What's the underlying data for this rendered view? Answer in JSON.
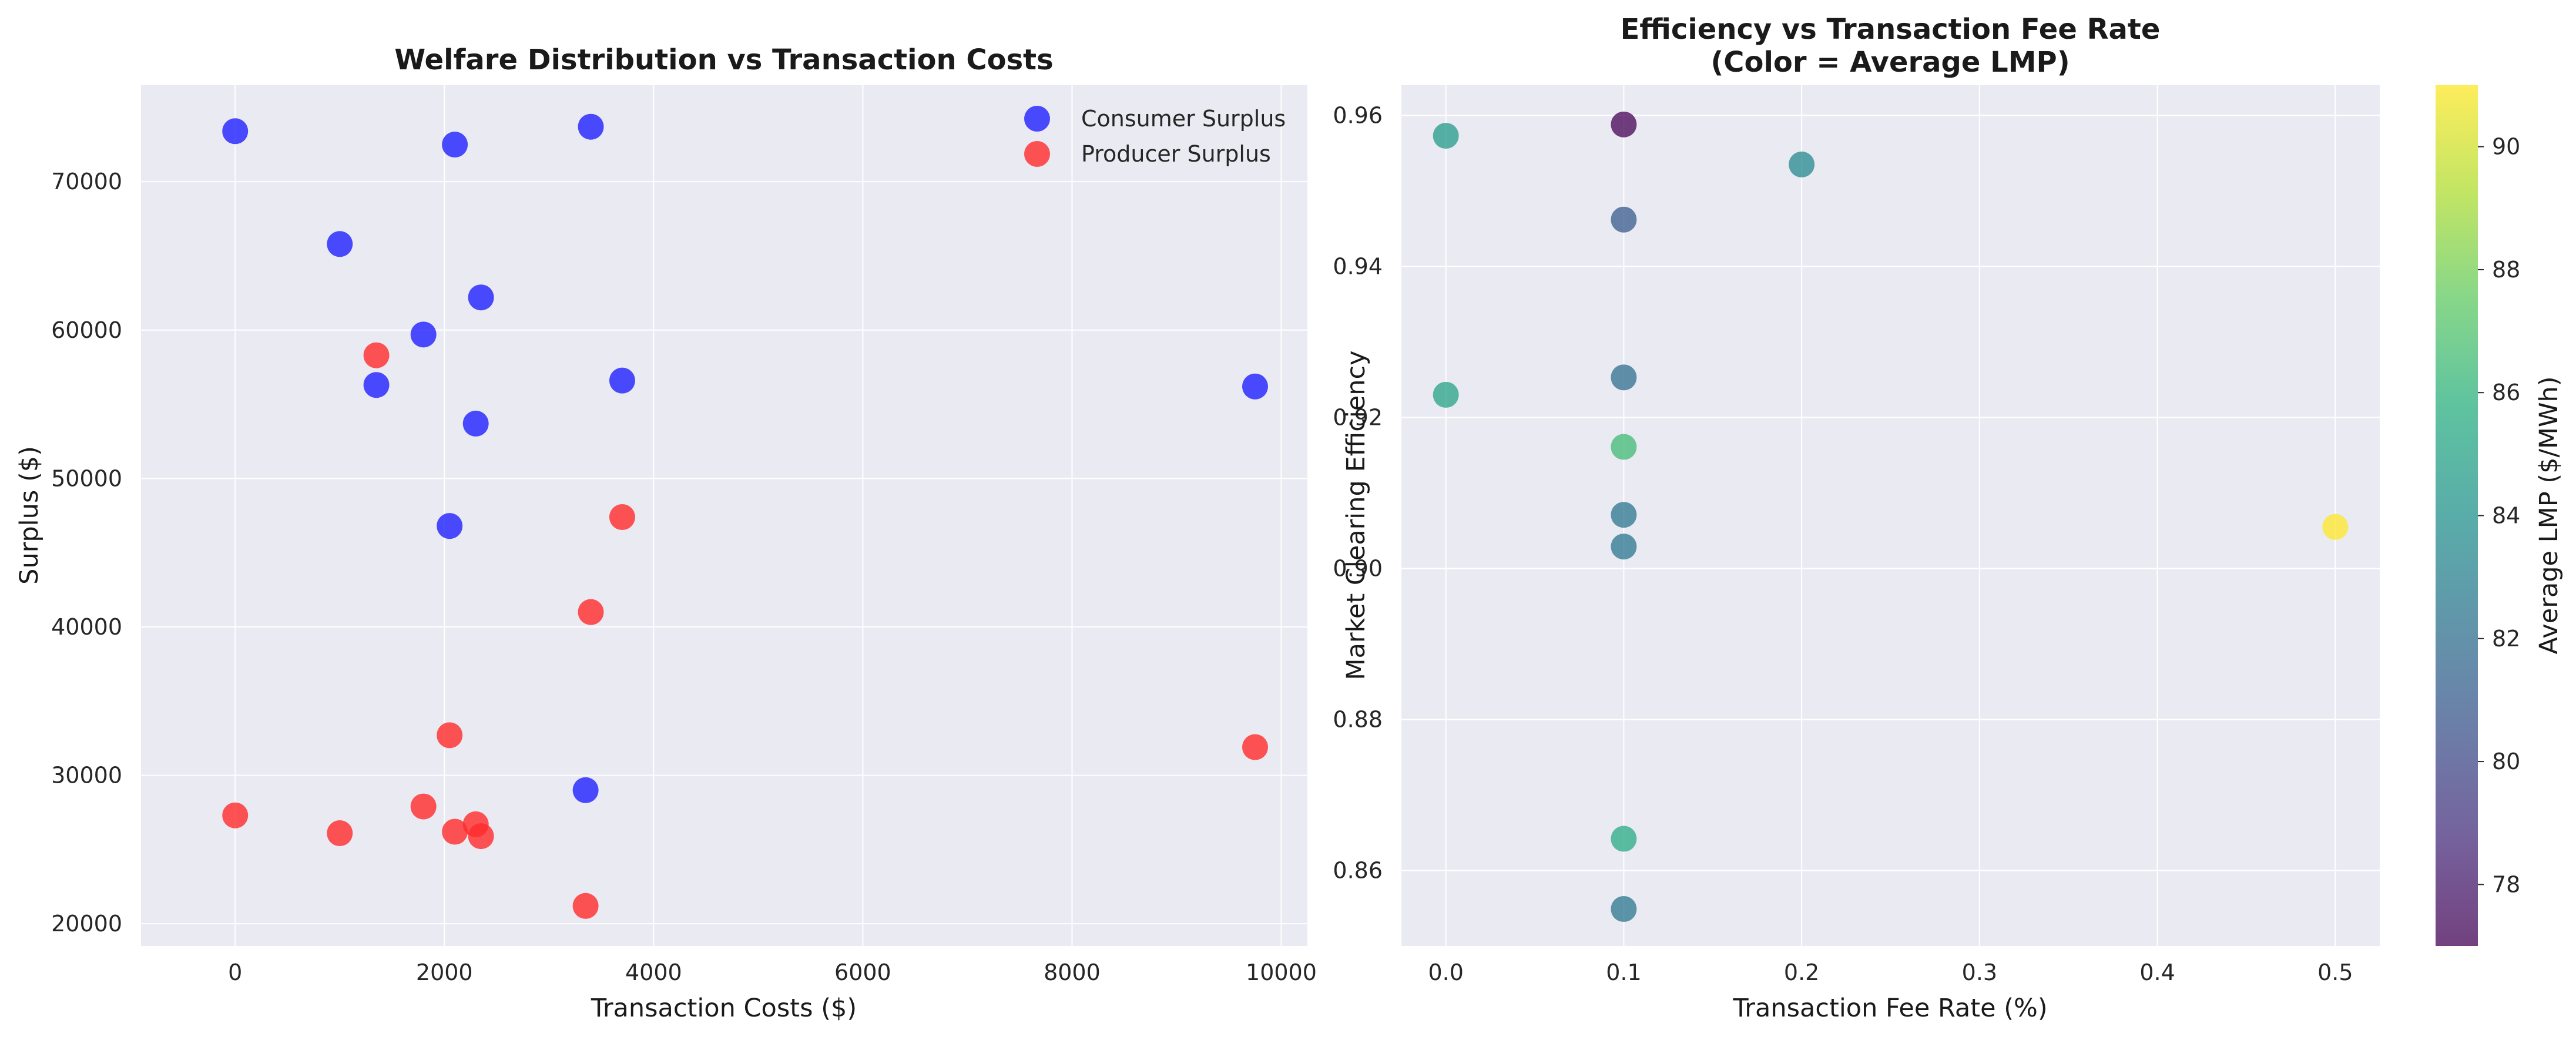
{
  "chart_data": [
    {
      "type": "scatter",
      "title": "Welfare Distribution vs Transaction Costs",
      "xlabel": "Transaction Costs ($)",
      "ylabel": "Surplus ($)",
      "xlim": [
        -900,
        10250
      ],
      "ylim": [
        18500,
        76500
      ],
      "xticks": [
        0,
        2000,
        4000,
        6000,
        8000,
        10000
      ],
      "yticks": [
        20000,
        30000,
        40000,
        50000,
        60000,
        70000
      ],
      "grid": true,
      "legend": "top-right",
      "series": [
        {
          "name": "Consumer Surplus",
          "color": "#1f1fff",
          "points": [
            [
              0,
              73400
            ],
            [
              2100,
              72500
            ],
            [
              3400,
              73700
            ],
            [
              1000,
              65800
            ],
            [
              2350,
              62200
            ],
            [
              1800,
              59700
            ],
            [
              1350,
              56300
            ],
            [
              3700,
              56600
            ],
            [
              9750,
              56200
            ],
            [
              2300,
              53700
            ],
            [
              2050,
              46800
            ],
            [
              3350,
              29000
            ]
          ]
        },
        {
          "name": "Producer Surplus",
          "color": "#ff2a2a",
          "points": [
            [
              1350,
              58300
            ],
            [
              3700,
              47400
            ],
            [
              3400,
              41000
            ],
            [
              2050,
              32700
            ],
            [
              9750,
              31900
            ],
            [
              0,
              27300
            ],
            [
              1800,
              27900
            ],
            [
              1000,
              26100
            ],
            [
              2100,
              26200
            ],
            [
              2300,
              26700
            ],
            [
              2350,
              25900
            ],
            [
              3350,
              21200
            ]
          ]
        }
      ]
    },
    {
      "type": "scatter",
      "title": "Efficiency vs Transaction Fee Rate",
      "subtitle": "(Color = Average LMP)",
      "xlabel": "Transaction Fee Rate (%)",
      "ylabel": "Market Clearing Efficiency",
      "xlim": [
        -0.025,
        0.525
      ],
      "ylim": [
        0.85,
        0.964
      ],
      "xticks": [
        0.0,
        0.1,
        0.2,
        0.3,
        0.4,
        0.5
      ],
      "yticks": [
        0.86,
        0.88,
        0.9,
        0.92,
        0.94,
        0.96
      ],
      "grid": true,
      "colorbar": {
        "label": "Average LMP ($/MWh)",
        "colormap": "viridis",
        "range": [
          77.0,
          91.0
        ],
        "ticks": [
          78,
          80,
          82,
          84,
          86,
          88,
          90
        ]
      },
      "points": [
        {
          "x": 0.0,
          "y": 0.9573,
          "lmp": 84.5
        },
        {
          "x": 0.0,
          "y": 0.923,
          "lmp": 85.0
        },
        {
          "x": 0.1,
          "y": 0.9588,
          "lmp": 77.0
        },
        {
          "x": 0.1,
          "y": 0.9462,
          "lmp": 81.0
        },
        {
          "x": 0.1,
          "y": 0.9253,
          "lmp": 82.0
        },
        {
          "x": 0.1,
          "y": 0.9161,
          "lmp": 86.5
        },
        {
          "x": 0.1,
          "y": 0.9071,
          "lmp": 82.5
        },
        {
          "x": 0.1,
          "y": 0.9029,
          "lmp": 82.5
        },
        {
          "x": 0.1,
          "y": 0.8642,
          "lmp": 85.5
        },
        {
          "x": 0.1,
          "y": 0.8549,
          "lmp": 82.5
        },
        {
          "x": 0.2,
          "y": 0.9535,
          "lmp": 83.5
        },
        {
          "x": 0.5,
          "y": 0.9055,
          "lmp": 91.0
        }
      ]
    }
  ]
}
